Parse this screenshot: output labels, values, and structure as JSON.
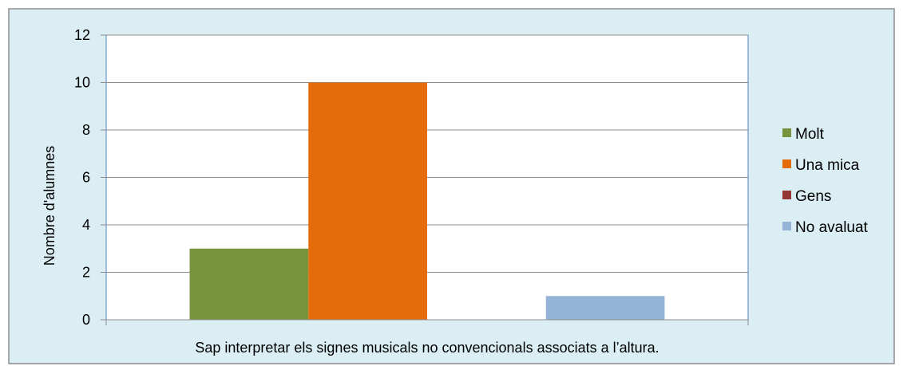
{
  "chart_data": {
    "type": "bar",
    "title": "",
    "xlabel": "Sap interpretar els signes musicals no convencionals associats a l’altura.",
    "ylabel": "Nombre d'alumnes",
    "ylim": [
      0,
      12
    ],
    "ytick_step": 2,
    "grid": true,
    "legend_position": "right",
    "background_color": "#DAEEF3",
    "plot_background_color": "#FFFFFF",
    "series": [
      {
        "name": "Molt",
        "value": 3,
        "color": "#77933C"
      },
      {
        "name": "Una mica",
        "value": 10,
        "color": "#E46C0A"
      },
      {
        "name": "Gens",
        "value": 0,
        "color": "#953735"
      },
      {
        "name": "No avaluat",
        "value": 1,
        "color": "#95B3D7"
      }
    ]
  }
}
